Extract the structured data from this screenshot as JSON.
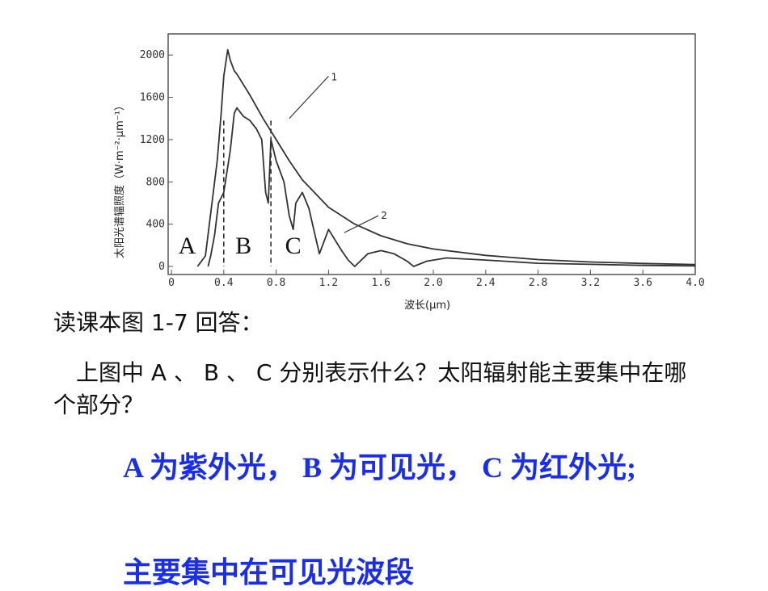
{
  "colors": {
    "line": "#333333",
    "answer": "#1a2ee8",
    "text": "#111111"
  },
  "chart_data": {
    "type": "line",
    "title": "",
    "xlabel": "波长(μm)",
    "ylabel": "太阳光谱辐照度（W·m⁻²·μm⁻¹）",
    "xlim": [
      0,
      4.0
    ],
    "ylim": [
      0,
      2200
    ],
    "x_ticks": [
      "0",
      "0.4",
      "0.8",
      "1.2",
      "1.6",
      "2.0",
      "2.4",
      "2.8",
      "3.2",
      "3.6",
      "4.0"
    ],
    "x_tick_values": [
      0,
      0.4,
      0.8,
      1.2,
      1.6,
      2.0,
      2.4,
      2.8,
      3.2,
      3.6,
      4.0
    ],
    "y_ticks": [
      "0",
      "400",
      "800",
      "1200",
      "1600",
      "2000"
    ],
    "y_tick_values": [
      0,
      400,
      800,
      1200,
      1600,
      2000
    ],
    "regions": [
      "A",
      "B",
      "C"
    ],
    "region_boundaries": [
      0.4,
      0.76
    ],
    "series": [
      {
        "name": "1",
        "x": [
          0.2,
          0.26,
          0.3,
          0.35,
          0.38,
          0.4,
          0.43,
          0.45,
          0.48,
          0.5,
          0.55,
          0.6,
          0.7,
          0.8,
          0.9,
          1.0,
          1.2,
          1.4,
          1.6,
          1.8,
          2.0,
          2.4,
          2.8,
          3.2,
          3.6,
          4.0
        ],
        "values": [
          0,
          100,
          500,
          1000,
          1450,
          1800,
          2050,
          1950,
          1850,
          1820,
          1720,
          1620,
          1400,
          1200,
          1000,
          820,
          560,
          400,
          290,
          215,
          165,
          105,
          65,
          42,
          28,
          18
        ]
      },
      {
        "name": "2",
        "x": [
          0.28,
          0.3,
          0.33,
          0.36,
          0.4,
          0.45,
          0.48,
          0.5,
          0.55,
          0.6,
          0.65,
          0.69,
          0.72,
          0.74,
          0.76,
          0.78,
          0.8,
          0.86,
          0.9,
          0.93,
          0.95,
          1.0,
          1.05,
          1.1,
          1.13,
          1.2,
          1.3,
          1.35,
          1.4,
          1.5,
          1.6,
          1.7,
          1.8,
          1.85,
          1.95,
          2.1,
          2.4,
          2.8,
          3.2,
          3.6,
          4.0
        ],
        "values": [
          0,
          100,
          300,
          600,
          700,
          1100,
          1450,
          1500,
          1420,
          1380,
          1300,
          1200,
          700,
          600,
          1200,
          1100,
          1000,
          800,
          480,
          350,
          600,
          700,
          550,
          280,
          120,
          350,
          150,
          60,
          0,
          120,
          150,
          120,
          50,
          0,
          50,
          80,
          60,
          30,
          20,
          10,
          5
        ]
      }
    ]
  },
  "text": {
    "prompt": "读课本图 1-7 回答：",
    "question": "上图中 A 、 B 、 C 分别表示什么？太阳辐射能主要集中在哪个部分？",
    "answer_line1": "A 为紫外光， B 为可见光， C 为红外光;",
    "answer_line2": "主要集中在可见光波段"
  }
}
